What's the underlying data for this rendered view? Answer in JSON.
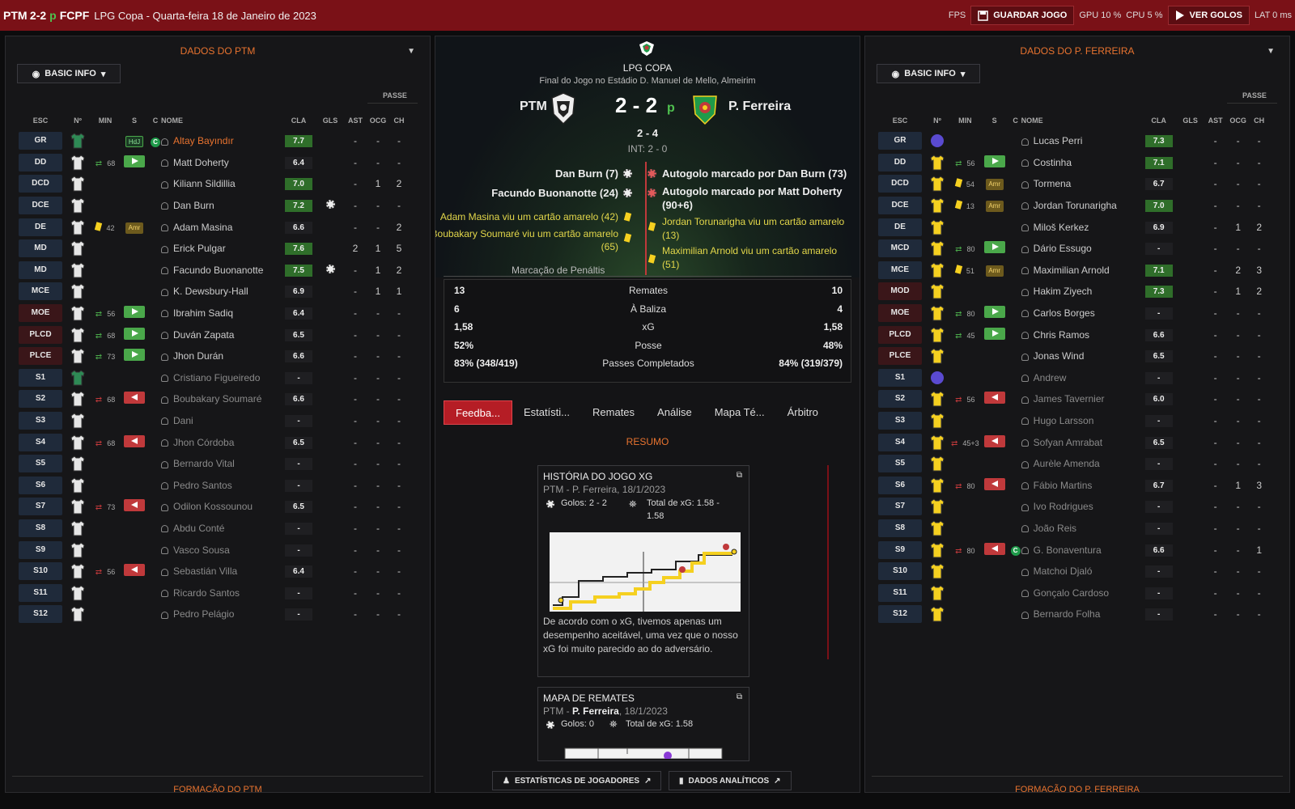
{
  "topbar": {
    "home": "PTM",
    "score": "2-2",
    "pen": "p",
    "away": "FCPF",
    "subtitle": "LPG Copa - Quarta-feira 18 de Janeiro de 2023",
    "fps": "FPS",
    "save": "GUARDAR JOGO",
    "gpu": "GPU 10 %",
    "cpu": "CPU 5 %",
    "goals": "VER GOLOS",
    "lat": "LAT 0 ms"
  },
  "left": {
    "title": "DADOS DO PTM",
    "filter": "BASIC INFO",
    "passe": "PASSE",
    "footer": "FORMAÇÃO DO PTM",
    "headers": [
      "ESC",
      "Nº",
      "MIN",
      "S",
      "C",
      "NOME",
      "CLA",
      "GLS",
      "AST",
      "OCG",
      "CH"
    ],
    "rows": [
      {
        "pos": "GR",
        "min": "",
        "s": "HdJ",
        "c": "cap",
        "name": "Altay Bayındır",
        "rat": "7.7",
        "gls": "",
        "ast": "-",
        "ocg": "-",
        "ch": "-",
        "hl": "orange"
      },
      {
        "pos": "DD",
        "min": "68",
        "s": "in",
        "name": "Matt Doherty",
        "rat": "6.4",
        "gls": "",
        "ast": "-",
        "ocg": "-",
        "ch": "-"
      },
      {
        "pos": "DCD",
        "min": "",
        "s": "",
        "name": "Kiliann Sildillia",
        "rat": "7.0",
        "gls": "",
        "ast": "-",
        "ocg": "1",
        "ch": "2"
      },
      {
        "pos": "DCE",
        "min": "",
        "s": "",
        "name": "Dan Burn",
        "rat": "7.2",
        "gls": "ball",
        "ast": "-",
        "ocg": "-",
        "ch": "-"
      },
      {
        "pos": "DE",
        "min": "42",
        "s": "Amr",
        "yc": true,
        "name": "Adam Masina",
        "rat": "6.6",
        "gls": "",
        "ast": "-",
        "ocg": "-",
        "ch": "2"
      },
      {
        "pos": "MD",
        "min": "",
        "s": "",
        "name": "Erick Pulgar",
        "rat": "7.6",
        "gls": "",
        "ast": "2",
        "ocg": "1",
        "ch": "5"
      },
      {
        "pos": "MD",
        "min": "",
        "s": "",
        "name": "Facundo Buonanotte",
        "rat": "7.5",
        "gls": "ball",
        "ast": "-",
        "ocg": "1",
        "ch": "2"
      },
      {
        "pos": "MCE",
        "min": "",
        "s": "",
        "name": "K. Dewsbury-Hall",
        "rat": "6.9",
        "gls": "",
        "ast": "-",
        "ocg": "1",
        "ch": "1"
      },
      {
        "pos": "MOE",
        "min": "56",
        "s": "in",
        "name": "Ibrahim Sadiq",
        "rat": "6.4",
        "gls": "",
        "ast": "-",
        "ocg": "-",
        "ch": "-",
        "red": true
      },
      {
        "pos": "PLCD",
        "min": "68",
        "s": "in",
        "name": "Duván Zapata",
        "rat": "6.5",
        "gls": "",
        "ast": "-",
        "ocg": "-",
        "ch": "-",
        "red": true
      },
      {
        "pos": "PLCE",
        "min": "73",
        "s": "in",
        "name": "Jhon Durán",
        "rat": "6.6",
        "gls": "",
        "ast": "-",
        "ocg": "-",
        "ch": "-",
        "red": true
      },
      {
        "pos": "S1",
        "min": "",
        "s": "",
        "name": "Cristiano Figueiredo",
        "rat": "-",
        "gls": "",
        "ast": "-",
        "ocg": "-",
        "ch": "-",
        "dim": true
      },
      {
        "pos": "S2",
        "min": "68",
        "s": "out",
        "name": "Boubakary Soumaré",
        "rat": "6.6",
        "gls": "",
        "ast": "-",
        "ocg": "-",
        "ch": "-",
        "dim": true
      },
      {
        "pos": "S3",
        "min": "",
        "s": "",
        "name": "Dani",
        "rat": "-",
        "gls": "",
        "ast": "-",
        "ocg": "-",
        "ch": "-",
        "dim": true
      },
      {
        "pos": "S4",
        "min": "68",
        "s": "out",
        "name": "Jhon Córdoba",
        "rat": "6.5",
        "gls": "",
        "ast": "-",
        "ocg": "-",
        "ch": "-",
        "dim": true
      },
      {
        "pos": "S5",
        "min": "",
        "s": "",
        "name": "Bernardo Vital",
        "rat": "-",
        "gls": "",
        "ast": "-",
        "ocg": "-",
        "ch": "-",
        "dim": true
      },
      {
        "pos": "S6",
        "min": "",
        "s": "",
        "name": "Pedro Santos",
        "rat": "-",
        "gls": "",
        "ast": "-",
        "ocg": "-",
        "ch": "-",
        "dim": true
      },
      {
        "pos": "S7",
        "min": "73",
        "s": "out",
        "name": "Odilon Kossounou",
        "rat": "6.5",
        "gls": "",
        "ast": "-",
        "ocg": "-",
        "ch": "-",
        "dim": true
      },
      {
        "pos": "S8",
        "min": "",
        "s": "",
        "name": "Abdu Conté",
        "rat": "-",
        "gls": "",
        "ast": "-",
        "ocg": "-",
        "ch": "-",
        "dim": true
      },
      {
        "pos": "S9",
        "min": "",
        "s": "",
        "name": "Vasco Sousa",
        "rat": "-",
        "gls": "",
        "ast": "-",
        "ocg": "-",
        "ch": "-",
        "dim": true
      },
      {
        "pos": "S10",
        "min": "56",
        "s": "out",
        "name": "Sebastián Villa",
        "rat": "6.4",
        "gls": "",
        "ast": "-",
        "ocg": "-",
        "ch": "-",
        "dim": true
      },
      {
        "pos": "S11",
        "min": "",
        "s": "",
        "name": "Ricardo Santos",
        "rat": "-",
        "gls": "",
        "ast": "-",
        "ocg": "-",
        "ch": "-",
        "dim": true
      },
      {
        "pos": "S12",
        "min": "",
        "s": "",
        "name": "Pedro Pelágio",
        "rat": "-",
        "gls": "",
        "ast": "-",
        "ocg": "-",
        "ch": "-",
        "dim": true
      }
    ]
  },
  "right": {
    "title": "DADOS DO P. FERREIRA",
    "filter": "BASIC INFO",
    "passe": "PASSE",
    "footer": "FORMAÇÃO DO P. FERREIRA",
    "headers": [
      "ESC",
      "Nº",
      "MIN",
      "S",
      "C",
      "NOME",
      "CLA",
      "GLS",
      "AST",
      "OCG",
      "CH"
    ],
    "rows": [
      {
        "pos": "GR",
        "min": "",
        "s": "",
        "name": "Lucas Perri",
        "rat": "7.3",
        "gls": "",
        "ast": "-",
        "ocg": "-",
        "ch": "-",
        "gk": true
      },
      {
        "pos": "DD",
        "min": "56",
        "s": "in",
        "name": "Costinha",
        "rat": "7.1",
        "gls": "",
        "ast": "-",
        "ocg": "-",
        "ch": "-"
      },
      {
        "pos": "DCD",
        "min": "54",
        "s": "Amr",
        "yc": true,
        "name": "Tormena",
        "rat": "6.7",
        "gls": "",
        "ast": "-",
        "ocg": "-",
        "ch": "-"
      },
      {
        "pos": "DCE",
        "min": "13",
        "s": "Amr",
        "yc": true,
        "name": "Jordan Torunarigha",
        "rat": "7.0",
        "gls": "",
        "ast": "-",
        "ocg": "-",
        "ch": "-"
      },
      {
        "pos": "DE",
        "min": "",
        "s": "",
        "name": "Miloš Kerkez",
        "rat": "6.9",
        "gls": "",
        "ast": "-",
        "ocg": "1",
        "ch": "2"
      },
      {
        "pos": "MCD",
        "min": "80",
        "s": "in",
        "name": "Dário Essugo",
        "rat": "-",
        "gls": "",
        "ast": "-",
        "ocg": "-",
        "ch": "-"
      },
      {
        "pos": "MCE",
        "min": "51",
        "s": "Amr",
        "yc": true,
        "name": "Maximilian Arnold",
        "rat": "7.1",
        "gls": "",
        "ast": "-",
        "ocg": "2",
        "ch": "3"
      },
      {
        "pos": "MOD",
        "min": "",
        "s": "",
        "name": "Hakim Ziyech",
        "rat": "7.3",
        "gls": "",
        "ast": "-",
        "ocg": "1",
        "ch": "2",
        "red": true
      },
      {
        "pos": "MOE",
        "min": "80",
        "s": "in",
        "name": "Carlos Borges",
        "rat": "-",
        "gls": "",
        "ast": "-",
        "ocg": "-",
        "ch": "-",
        "red": true
      },
      {
        "pos": "PLCD",
        "min": "45",
        "s": "in",
        "name": "Chris Ramos",
        "rat": "6.6",
        "gls": "",
        "ast": "-",
        "ocg": "-",
        "ch": "-",
        "red": true
      },
      {
        "pos": "PLCE",
        "min": "",
        "s": "",
        "name": "Jonas Wind",
        "rat": "6.5",
        "gls": "",
        "ast": "-",
        "ocg": "-",
        "ch": "-",
        "red": true
      },
      {
        "pos": "S1",
        "min": "",
        "s": "",
        "name": "Andrew",
        "rat": "-",
        "gls": "",
        "ast": "-",
        "ocg": "-",
        "ch": "-",
        "dim": true,
        "gk": true
      },
      {
        "pos": "S2",
        "min": "56",
        "s": "out",
        "name": "James Tavernier",
        "rat": "6.0",
        "gls": "",
        "ast": "-",
        "ocg": "-",
        "ch": "-",
        "dim": true
      },
      {
        "pos": "S3",
        "min": "",
        "s": "",
        "name": "Hugo Larsson",
        "rat": "-",
        "gls": "",
        "ast": "-",
        "ocg": "-",
        "ch": "-",
        "dim": true
      },
      {
        "pos": "S4",
        "min": "45+3",
        "s": "out",
        "name": "Sofyan Amrabat",
        "rat": "6.5",
        "gls": "",
        "ast": "-",
        "ocg": "-",
        "ch": "-",
        "dim": true
      },
      {
        "pos": "S5",
        "min": "",
        "s": "",
        "name": "Aurèle Amenda",
        "rat": "-",
        "gls": "",
        "ast": "-",
        "ocg": "-",
        "ch": "-",
        "dim": true
      },
      {
        "pos": "S6",
        "min": "80",
        "s": "out",
        "name": "Fábio Martins",
        "rat": "6.7",
        "gls": "",
        "ast": "-",
        "ocg": "1",
        "ch": "3",
        "dim": true
      },
      {
        "pos": "S7",
        "min": "",
        "s": "",
        "name": "Ivo Rodrigues",
        "rat": "-",
        "gls": "",
        "ast": "-",
        "ocg": "-",
        "ch": "-",
        "dim": true
      },
      {
        "pos": "S8",
        "min": "",
        "s": "",
        "name": "João Reis",
        "rat": "-",
        "gls": "",
        "ast": "-",
        "ocg": "-",
        "ch": "-",
        "dim": true
      },
      {
        "pos": "S9",
        "min": "80",
        "s": "out",
        "c": "cap",
        "name": "G. Bonaventura",
        "rat": "6.6",
        "gls": "",
        "ast": "-",
        "ocg": "-",
        "ch": "1",
        "dim": true
      },
      {
        "pos": "S10",
        "min": "",
        "s": "",
        "name": "Matchoi Djaló",
        "rat": "-",
        "gls": "",
        "ast": "-",
        "ocg": "-",
        "ch": "-",
        "dim": true
      },
      {
        "pos": "S11",
        "min": "",
        "s": "",
        "name": "Gonçalo Cardoso",
        "rat": "-",
        "gls": "",
        "ast": "-",
        "ocg": "-",
        "ch": "-",
        "dim": true
      },
      {
        "pos": "S12",
        "min": "",
        "s": "",
        "name": "Bernardo Folha",
        "rat": "-",
        "gls": "",
        "ast": "-",
        "ocg": "-",
        "ch": "-",
        "dim": true
      }
    ]
  },
  "center": {
    "comp": "LPG COPA",
    "venue": "Final do Jogo no Estádio D. Manuel de Mello, Almeirim",
    "home": "PTM",
    "away": "P. Ferreira",
    "score": "2 - 2",
    "pen": "p",
    "pens": "2 - 4",
    "ht": "INT: 2 - 0",
    "home_events": [
      "Dan Burn (7)",
      "Facundo Buonanotte (24)"
    ],
    "away_events": [
      "Autogolo marcado por Dan Burn (73)",
      "Autogolo marcado por Matt Doherty",
      "(90+6)"
    ],
    "home_cards": [
      "Adam Masina viu um cartão amarelo (42)",
      "Boubakary Soumaré viu um cartão amarelo",
      "(65)"
    ],
    "away_cards": [
      "Jordan Torunarigha viu um cartão amarelo",
      "(13)",
      "Maximilian Arnold viu um cartão amarelo",
      "(51)"
    ],
    "penalties": "Marcação de Penáltis",
    "stats": [
      {
        "a": "13",
        "label": "Remates",
        "b": "10"
      },
      {
        "a": "6",
        "label": "À Baliza",
        "b": "4"
      },
      {
        "a": "1,58",
        "label": "xG",
        "b": "1,58"
      },
      {
        "a": "52%",
        "label": "Posse",
        "b": "48%"
      },
      {
        "a": "83% (348/419)",
        "label": "Passes Completados",
        "b": "84% (319/379)"
      }
    ],
    "tabs": [
      "Feedba...",
      "Estatísti...",
      "Remates",
      "Análise",
      "Mapa Té...",
      "Árbitro"
    ],
    "resumo": "RESUMO",
    "xg_card": {
      "title": "HISTÓRIA DO JOGO XG",
      "sub": "PTM - P. Ferreira, 18/1/2023",
      "goals": "Golos: 2 - 2",
      "total": "Total de xG: 1.58 -",
      "total2": "1.58",
      "desc": "De acordo com o xG, tivemos apenas um desempenho aceitável, uma vez que o nosso xG foi muito parecido ao do adversário."
    },
    "shot_card": {
      "title": "MAPA DE REMATES",
      "sub_a": "PTM - ",
      "sub_b": "P. Ferreira",
      "sub_c": ", 18/1/2023",
      "goals": "Golos: 0",
      "total": "Total de xG: 1.58"
    },
    "btn_players": "ESTATÍSTICAS DE JOGADORES",
    "btn_analytics": "DADOS ANALÍTICOS"
  },
  "colors": {
    "accent": "#e8732f",
    "bar": "#7a1117",
    "yellow": "#f5d020",
    "green": "#4aa84a",
    "red": "#c0393b"
  }
}
